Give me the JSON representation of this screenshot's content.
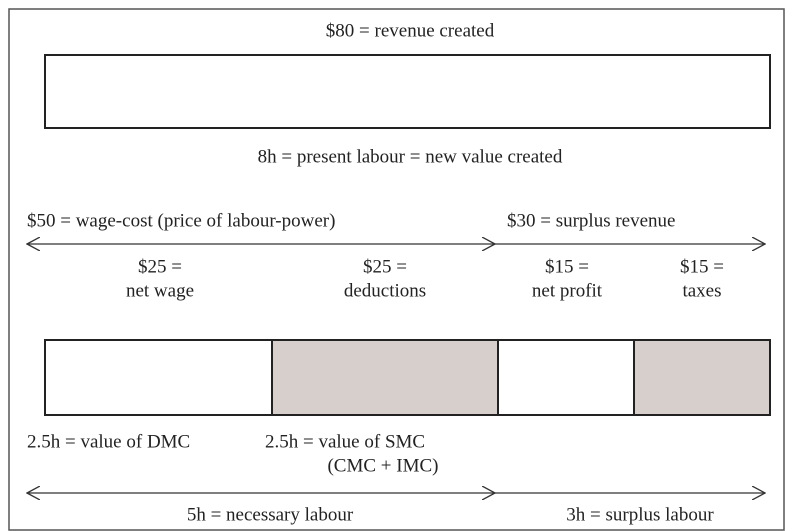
{
  "top": {
    "label": "$80 = revenue created",
    "caption": "8h = present labour = new value created"
  },
  "revenue_split": [
    {
      "label": "$50 = wage-cost (price of labour-power)"
    },
    {
      "label": "$30 = surplus revenue"
    }
  ],
  "segments": [
    {
      "amount": "$25 =",
      "name": "net wage"
    },
    {
      "amount": "$25 =",
      "name": "deductions"
    },
    {
      "amount": "$15 =",
      "name": "net profit"
    },
    {
      "amount": "$15 =",
      "name": "taxes"
    }
  ],
  "values": [
    {
      "label": "2.5h = value of DMC"
    },
    {
      "label": "2.5h = value of SMC",
      "detail": "(CMC + IMC)"
    }
  ],
  "labour_split": [
    {
      "label": "5h = necessary labour"
    },
    {
      "label": "3h = surplus labour"
    }
  ]
}
